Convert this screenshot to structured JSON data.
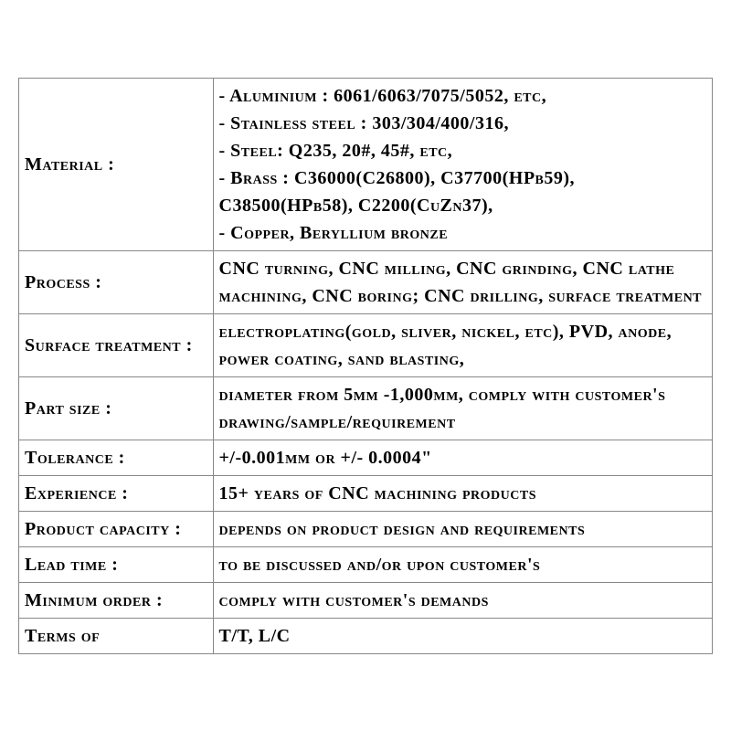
{
  "table": {
    "rows": [
      {
        "label": "Material :",
        "value_lines": [
          "- Aluminium : 6061/6063/7075/5052, etc,",
          "- Stainless steel : 303/304/400/316,",
          "- Steel: Q235, 20#, 45#, etc,",
          "- Brass : C36000(C26800), C37700(HPb59), C38500(HPb58), C2200(CuZn37),",
          "- Copper, Beryllium bronze"
        ]
      },
      {
        "label": "Process :",
        "value": "CNC turning, CNC milling, CNC grinding, CNC lathe machining, CNC boring; CNC drilling, surface treatment"
      },
      {
        "label": "Surface treatment :",
        "value": "electroplating(gold, sliver, nickel, etc), PVD, anode, power coating, sand blasting,"
      },
      {
        "label": "Part size :",
        "value": "diameter from 5mm -1,000mm, comply with customer's drawing/sample/requirement"
      },
      {
        "label": "Tolerance :",
        "value": "+/-0.001mm or +/- 0.0004\""
      },
      {
        "label": "Experience :",
        "value": "15+ years of CNC machining products"
      },
      {
        "label": "Product capacity :",
        "value": "depends on product design and requirements"
      },
      {
        "label": "Lead time :",
        "value": "to be discussed and/or upon customer's"
      },
      {
        "label": "Minimum order :",
        "value": "comply with customer's demands"
      },
      {
        "label": "Terms of",
        "value": "T/T, L/C"
      }
    ]
  },
  "styles": {
    "background_color": "#ffffff",
    "text_color": "#000000",
    "border_color": "#888888",
    "font_size": 20,
    "font_weight": 600,
    "label_width_pct": 28,
    "value_width_pct": 72
  }
}
